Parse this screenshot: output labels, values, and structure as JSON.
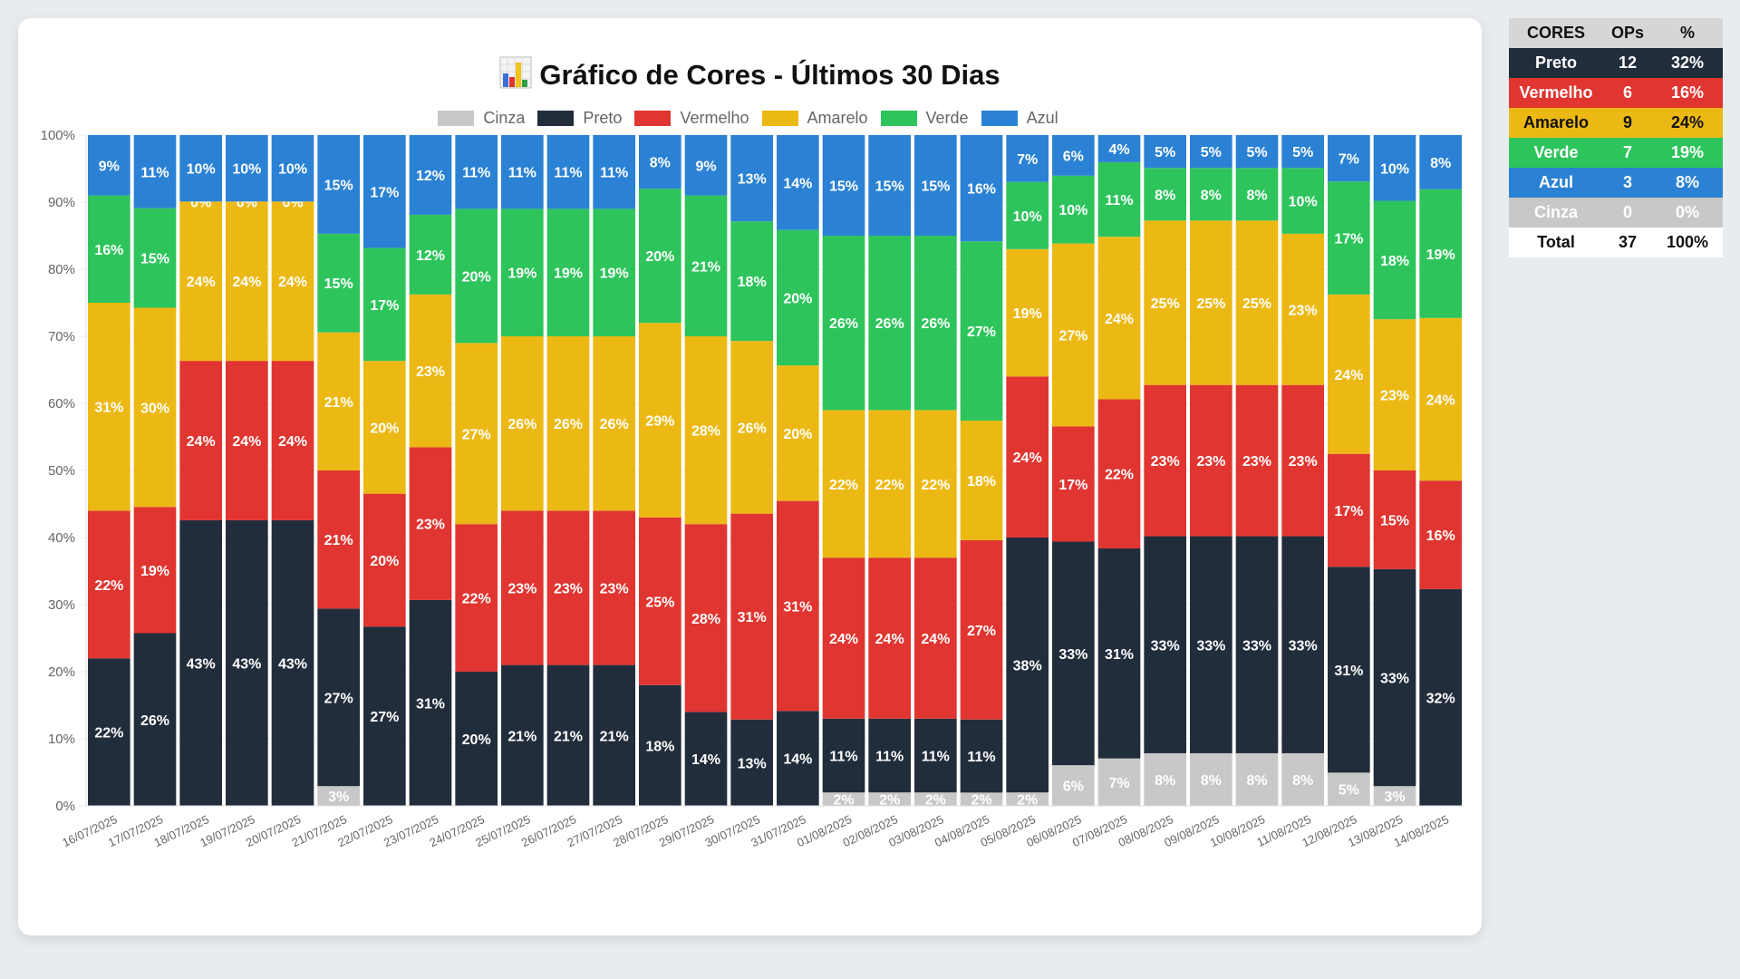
{
  "title": {
    "icon": "bar-chart-icon",
    "text": "Gráfico de Cores - Últimos 30 Dias"
  },
  "colors": {
    "Cinza": "#c8c8c8",
    "Preto": "#222d3c",
    "Vermelho": "#e03530",
    "Amarelo": "#ecb914",
    "Verde": "#2ec45c",
    "Azul": "#2b82d4"
  },
  "legend": [
    "Cinza",
    "Preto",
    "Vermelho",
    "Amarelo",
    "Verde",
    "Azul"
  ],
  "chart_data": {
    "type": "bar",
    "stacked": true,
    "normalized_percent": true,
    "title": "Gráfico de Cores - Últimos 30 Dias",
    "xlabel": "",
    "ylabel": "",
    "ylim": [
      0,
      100
    ],
    "yticks": [
      "0%",
      "10%",
      "20%",
      "30%",
      "40%",
      "50%",
      "60%",
      "70%",
      "80%",
      "90%",
      "100%"
    ],
    "legend_position": "top",
    "grid": true,
    "categories": [
      "16/07/2025",
      "17/07/2025",
      "18/07/2025",
      "19/07/2025",
      "20/07/2025",
      "21/07/2025",
      "22/07/2025",
      "23/07/2025",
      "24/07/2025",
      "25/07/2025",
      "26/07/2025",
      "27/07/2025",
      "28/07/2025",
      "29/07/2025",
      "30/07/2025",
      "31/07/2025",
      "01/08/2025",
      "02/08/2025",
      "03/08/2025",
      "04/08/2025",
      "05/08/2025",
      "06/08/2025",
      "07/08/2025",
      "08/08/2025",
      "09/08/2025",
      "10/08/2025",
      "11/08/2025",
      "12/08/2025",
      "13/08/2025",
      "14/08/2025"
    ],
    "series": [
      {
        "name": "Cinza",
        "values": [
          0,
          0,
          0,
          0,
          0,
          3,
          0,
          0,
          0,
          0,
          0,
          0,
          0,
          0,
          0,
          0,
          2,
          2,
          2,
          2,
          2,
          6,
          7,
          8,
          8,
          8,
          8,
          5,
          3,
          0
        ]
      },
      {
        "name": "Preto",
        "values": [
          22,
          26,
          43,
          43,
          43,
          27,
          27,
          31,
          20,
          21,
          21,
          21,
          18,
          14,
          13,
          14,
          11,
          11,
          11,
          11,
          38,
          33,
          31,
          33,
          33,
          33,
          33,
          31,
          33,
          32
        ]
      },
      {
        "name": "Vermelho",
        "values": [
          22,
          19,
          24,
          24,
          24,
          21,
          20,
          23,
          22,
          23,
          23,
          23,
          25,
          28,
          31,
          31,
          24,
          24,
          24,
          27,
          24,
          17,
          22,
          23,
          23,
          23,
          23,
          17,
          15,
          16
        ]
      },
      {
        "name": "Amarelo",
        "values": [
          31,
          30,
          24,
          24,
          24,
          21,
          20,
          23,
          27,
          26,
          26,
          26,
          29,
          28,
          26,
          20,
          22,
          22,
          22,
          18,
          19,
          27,
          24,
          25,
          25,
          25,
          23,
          24,
          23,
          24
        ]
      },
      {
        "name": "Verde",
        "values": [
          16,
          15,
          0,
          0,
          0,
          15,
          17,
          12,
          20,
          19,
          19,
          19,
          20,
          21,
          18,
          20,
          26,
          26,
          26,
          27,
          10,
          10,
          11,
          8,
          8,
          8,
          10,
          17,
          18,
          19
        ]
      },
      {
        "name": "Azul",
        "values": [
          9,
          11,
          10,
          10,
          10,
          15,
          17,
          12,
          11,
          11,
          11,
          11,
          8,
          9,
          13,
          14,
          15,
          15,
          15,
          16,
          7,
          6,
          4,
          5,
          5,
          5,
          5,
          7,
          10,
          8
        ]
      }
    ]
  },
  "summary_table": {
    "headers": [
      "CORES",
      "OPs",
      "%"
    ],
    "rows": [
      {
        "name": "Preto",
        "ops": "12",
        "pct": "32%",
        "bg": "#222d3c",
        "fg": "#ffffff"
      },
      {
        "name": "Vermelho",
        "ops": "6",
        "pct": "16%",
        "bg": "#e03530",
        "fg": "#ffffff"
      },
      {
        "name": "Amarelo",
        "ops": "9",
        "pct": "24%",
        "bg": "#ecb914",
        "fg": "#111111"
      },
      {
        "name": "Verde",
        "ops": "7",
        "pct": "19%",
        "bg": "#2ec45c",
        "fg": "#ffffff"
      },
      {
        "name": "Azul",
        "ops": "3",
        "pct": "8%",
        "bg": "#2b82d4",
        "fg": "#ffffff"
      },
      {
        "name": "Cinza",
        "ops": "0",
        "pct": "0%",
        "bg": "#c8c8c8",
        "fg": "#ffffff"
      }
    ],
    "total": {
      "name": "Total",
      "ops": "37",
      "pct": "100%"
    }
  }
}
